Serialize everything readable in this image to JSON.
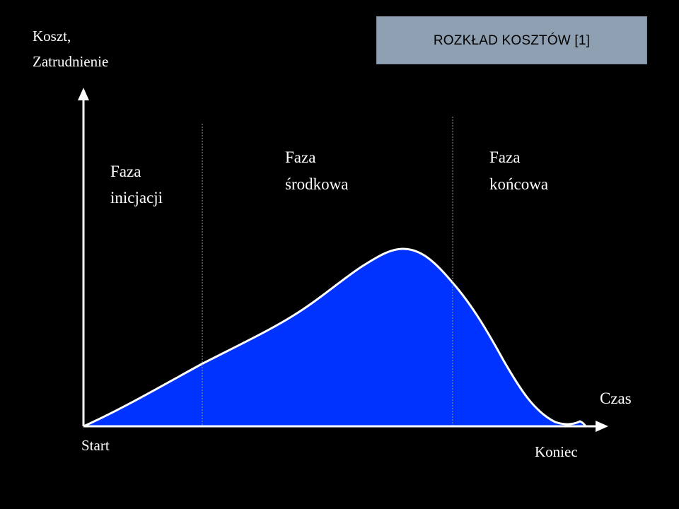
{
  "title": "ROZKŁAD KOSZTÓW [1]",
  "y_axis_label": [
    "Koszt,",
    "Zatrudnienie"
  ],
  "x_axis_label": "Czas",
  "start_label": "Start",
  "end_label": "Koniec",
  "phases": [
    {
      "lines": [
        "Faza",
        "inicjacji"
      ]
    },
    {
      "lines": [
        "Faza",
        "środkowa"
      ]
    },
    {
      "lines": [
        "Faza",
        "końcowa"
      ]
    }
  ],
  "colors": {
    "background": "#000000",
    "curve_fill": "#0033ff",
    "curve_outline": "#ffffff",
    "title_box": "#8ea0b2"
  }
}
